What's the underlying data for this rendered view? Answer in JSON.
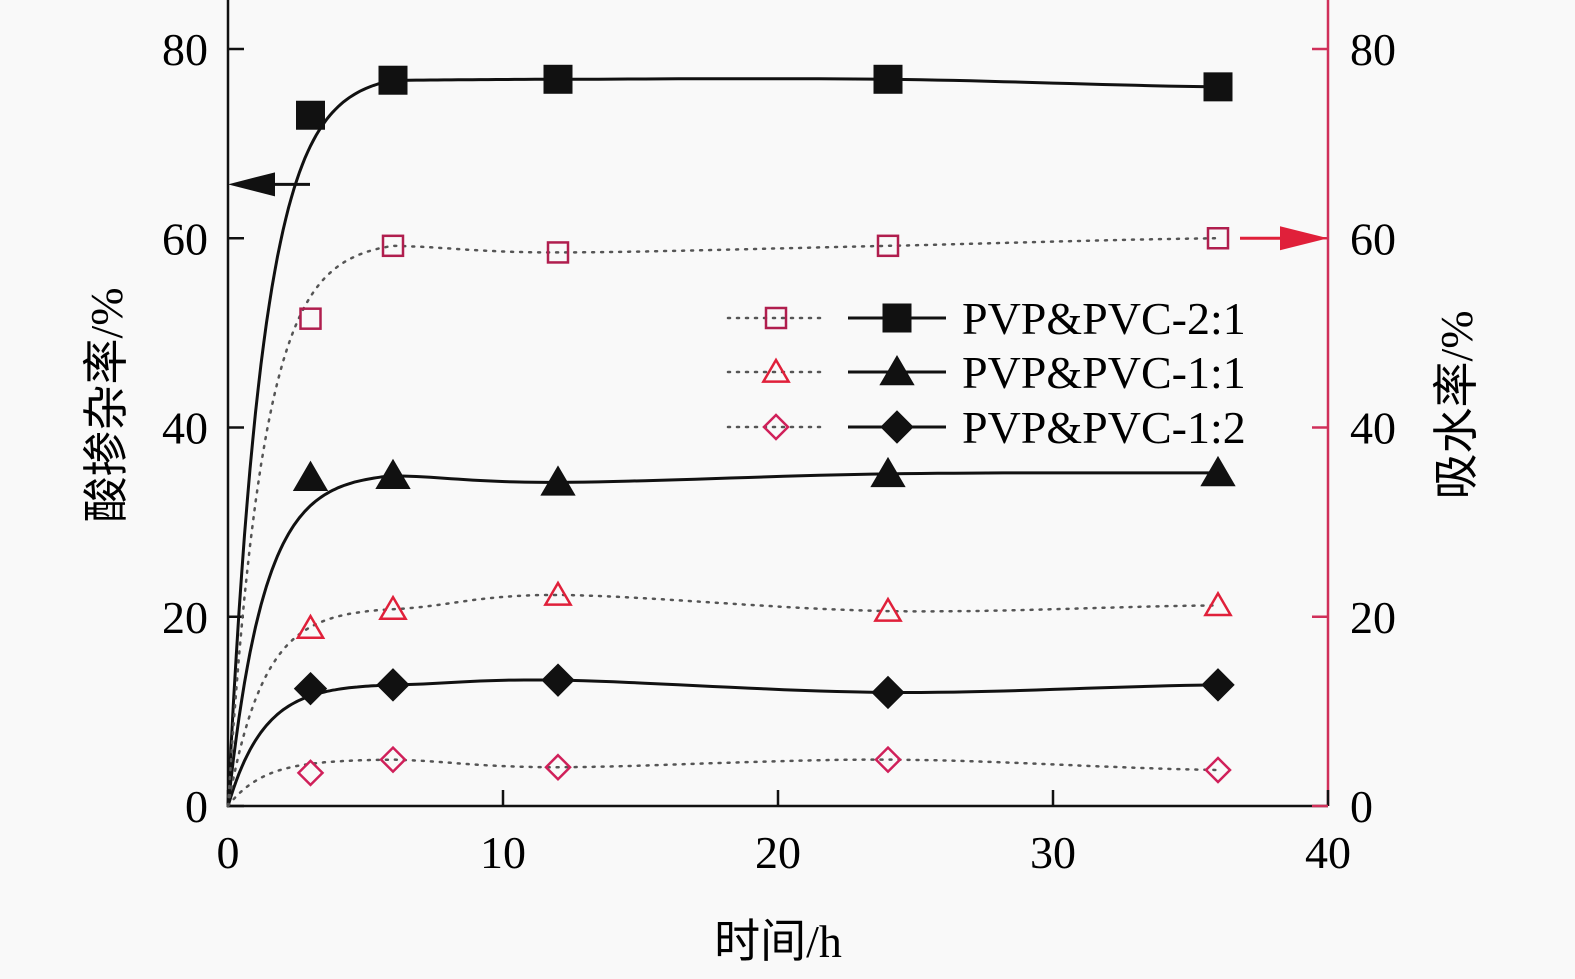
{
  "chart_data": {
    "type": "line",
    "title": "",
    "xlabel": "时间/h",
    "ylabel": "酸掺杂率/%",
    "y2label": "吸水率/%",
    "xlim": [
      0,
      40
    ],
    "ylim": [
      0,
      80
    ],
    "y2lim": [
      0,
      80
    ],
    "xticks": [
      "0",
      "10",
      "20",
      "30",
      "40"
    ],
    "yticks": [
      "0",
      "20",
      "40",
      "60",
      "80"
    ],
    "y2ticks": [
      "0",
      "20",
      "40",
      "60",
      "80"
    ],
    "grid": false,
    "legend_position": "center-right",
    "x": [
      3,
      6,
      12,
      24,
      36
    ],
    "series": [
      {
        "name": "PVP&PVC-2:1",
        "axis": "left",
        "marker": "filled-square",
        "line": "solid",
        "color": "#111111",
        "values": [
          73.0,
          76.7,
          76.8,
          76.8,
          76.0
        ]
      },
      {
        "name": "PVP&PVC-1:1",
        "axis": "left",
        "marker": "filled-triangle",
        "line": "solid",
        "color": "#111111",
        "values": [
          34.7,
          34.9,
          34.2,
          35.1,
          35.2
        ]
      },
      {
        "name": "PVP&PVC-1:2",
        "axis": "left",
        "marker": "filled-diamond",
        "line": "solid",
        "color": "#111111",
        "values": [
          12.4,
          12.8,
          13.3,
          12.0,
          12.8
        ]
      },
      {
        "name": "PVP&PVC-2:1",
        "axis": "right",
        "marker": "open-square",
        "line": "dotted",
        "color": "#b01e4e",
        "values": [
          51.5,
          59.2,
          58.5,
          59.2,
          60.0
        ]
      },
      {
        "name": "PVP&PVC-1:1",
        "axis": "right",
        "marker": "open-triangle",
        "line": "dotted",
        "color": "#e0203a",
        "values": [
          18.8,
          20.8,
          22.3,
          20.6,
          21.2
        ]
      },
      {
        "name": "PVP&PVC-1:2",
        "axis": "right",
        "marker": "open-diamond",
        "line": "dotted",
        "color": "#d0205a",
        "values": [
          3.5,
          4.9,
          4.1,
          4.9,
          3.8
        ]
      }
    ],
    "legend": [
      "PVP&PVC-2:1",
      "PVP&PVC-1:1",
      "PVP&PVC-1:2"
    ],
    "annotations": [
      {
        "type": "arrow",
        "direction": "left",
        "points_to": "left-axis",
        "y": 65.7,
        "color": "#111111"
      },
      {
        "type": "arrow",
        "direction": "right",
        "points_to": "right-axis",
        "y": 60,
        "color": "#e0203a"
      }
    ],
    "right_axis_color": "#d0305a"
  }
}
